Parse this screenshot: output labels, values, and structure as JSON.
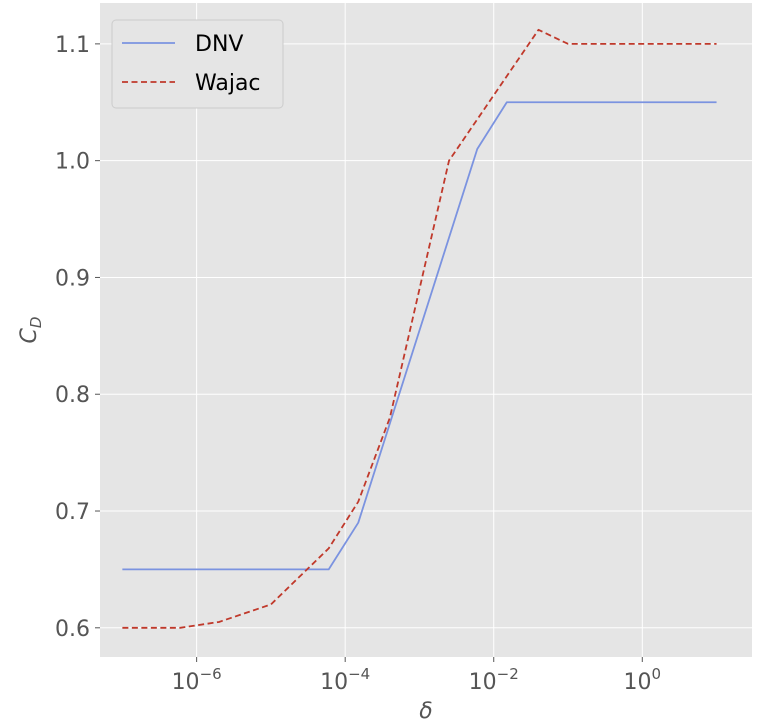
{
  "chart_data": {
    "type": "line",
    "xscale": "log",
    "xlim": [
      5e-08,
      30
    ],
    "ylim": [
      0.575,
      1.135
    ],
    "xlabel": "δ",
    "ylabel": "C",
    "ylabel_sub": "D",
    "grid": true,
    "legend_position": "top-left",
    "xticks": [
      {
        "value": 1e-06,
        "base": "10",
        "exp": "−6"
      },
      {
        "value": 0.0001,
        "base": "10",
        "exp": "−4"
      },
      {
        "value": 0.01,
        "base": "10",
        "exp": "−2"
      },
      {
        "value": 1,
        "base": "10",
        "exp": "0"
      }
    ],
    "yticks": [
      {
        "value": 0.6,
        "label": "0.6"
      },
      {
        "value": 0.7,
        "label": "0.7"
      },
      {
        "value": 0.8,
        "label": "0.8"
      },
      {
        "value": 0.9,
        "label": "0.9"
      },
      {
        "value": 1.0,
        "label": "1.0"
      },
      {
        "value": 1.1,
        "label": "1.1"
      }
    ],
    "series": [
      {
        "name": "DNV",
        "color": "#7b93e0",
        "dash": "solid",
        "x": [
          1e-07,
          6e-05,
          0.00015,
          0.006,
          0.015,
          10
        ],
        "y": [
          0.65,
          0.65,
          0.69,
          1.01,
          1.05,
          1.05
        ]
      },
      {
        "name": "Wajac",
        "color": "#c0392b",
        "dash": "dashed",
        "x": [
          1e-07,
          6e-07,
          2e-06,
          1e-05,
          6e-05,
          0.00015,
          0.0004,
          0.0025,
          0.04,
          0.1,
          10
        ],
        "y": [
          0.6,
          0.6,
          0.605,
          0.62,
          0.668,
          0.708,
          0.78,
          1.0,
          1.112,
          1.1,
          1.1
        ]
      }
    ]
  }
}
